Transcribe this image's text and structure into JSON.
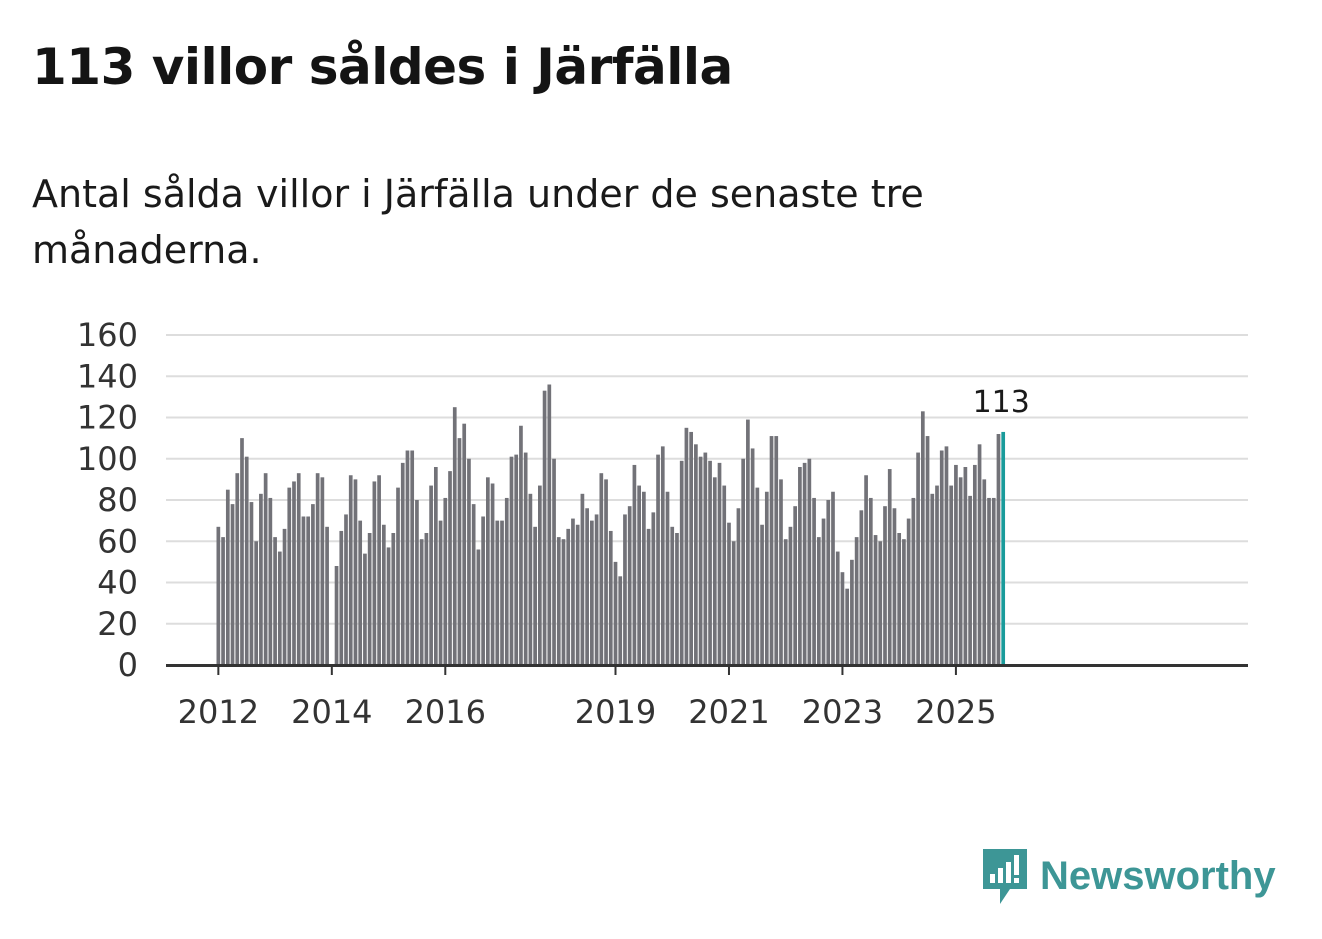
{
  "title": "113 villor såldes i Järfälla",
  "subtitle": "Antal sålda villor i Järfälla under de senaste tre månaderna.",
  "brand": {
    "name": "Newsworthy",
    "icon": "newsworthy-logo-icon",
    "color": "#3d9696"
  },
  "colors": {
    "bar": "#727278",
    "highlight": "#1a9b9b",
    "grid": "#dddddd",
    "axis": "#333333"
  },
  "chart_data": {
    "type": "bar",
    "title": "113 villor såldes i Järfälla",
    "xlabel": "",
    "ylabel": "",
    "ylim": [
      0,
      160
    ],
    "yticks": [
      0,
      20,
      40,
      60,
      80,
      100,
      120,
      140,
      160
    ],
    "yticks_label": [
      "0",
      "20",
      "40",
      "60",
      "80",
      "100",
      "120",
      "140",
      "160"
    ],
    "grid": true,
    "start": "2012-01",
    "xtick_labels": [
      {
        "label": "2012",
        "index": 0
      },
      {
        "label": "2014",
        "index": 24
      },
      {
        "label": "2016",
        "index": 48
      },
      {
        "label": "2019",
        "index": 84
      },
      {
        "label": "2021",
        "index": 108
      },
      {
        "label": "2023",
        "index": 132
      },
      {
        "label": "2025",
        "index": 156
      }
    ],
    "values": [
      67,
      62,
      85,
      78,
      93,
      110,
      101,
      79,
      60,
      83,
      93,
      81,
      62,
      55,
      66,
      86,
      89,
      93,
      72,
      72,
      78,
      93,
      91,
      67,
      0,
      48,
      65,
      73,
      92,
      90,
      70,
      54,
      64,
      89,
      92,
      68,
      57,
      64,
      86,
      98,
      104,
      104,
      80,
      61,
      64,
      87,
      96,
      70,
      81,
      94,
      125,
      110,
      117,
      100,
      78,
      56,
      72,
      91,
      88,
      70,
      70,
      81,
      101,
      102,
      116,
      103,
      83,
      67,
      87,
      133,
      136,
      100,
      62,
      61,
      66,
      71,
      68,
      83,
      76,
      70,
      73,
      93,
      90,
      65,
      50,
      43,
      73,
      77,
      97,
      87,
      84,
      66,
      74,
      102,
      106,
      84,
      67,
      64,
      99,
      115,
      113,
      107,
      101,
      103,
      99,
      91,
      98,
      87,
      69,
      60,
      76,
      100,
      119,
      105,
      86,
      68,
      84,
      111,
      111,
      90,
      61,
      67,
      77,
      96,
      98,
      100,
      81,
      62,
      71,
      80,
      84,
      55,
      45,
      37,
      51,
      62,
      75,
      92,
      81,
      63,
      60,
      77,
      95,
      76,
      64,
      61,
      71,
      81,
      103,
      123,
      111,
      83,
      87,
      104,
      106,
      87,
      97,
      91,
      96,
      82,
      97,
      107,
      90,
      81,
      81,
      112,
      113
    ],
    "highlight_index": 166,
    "highlight_label": "113"
  }
}
